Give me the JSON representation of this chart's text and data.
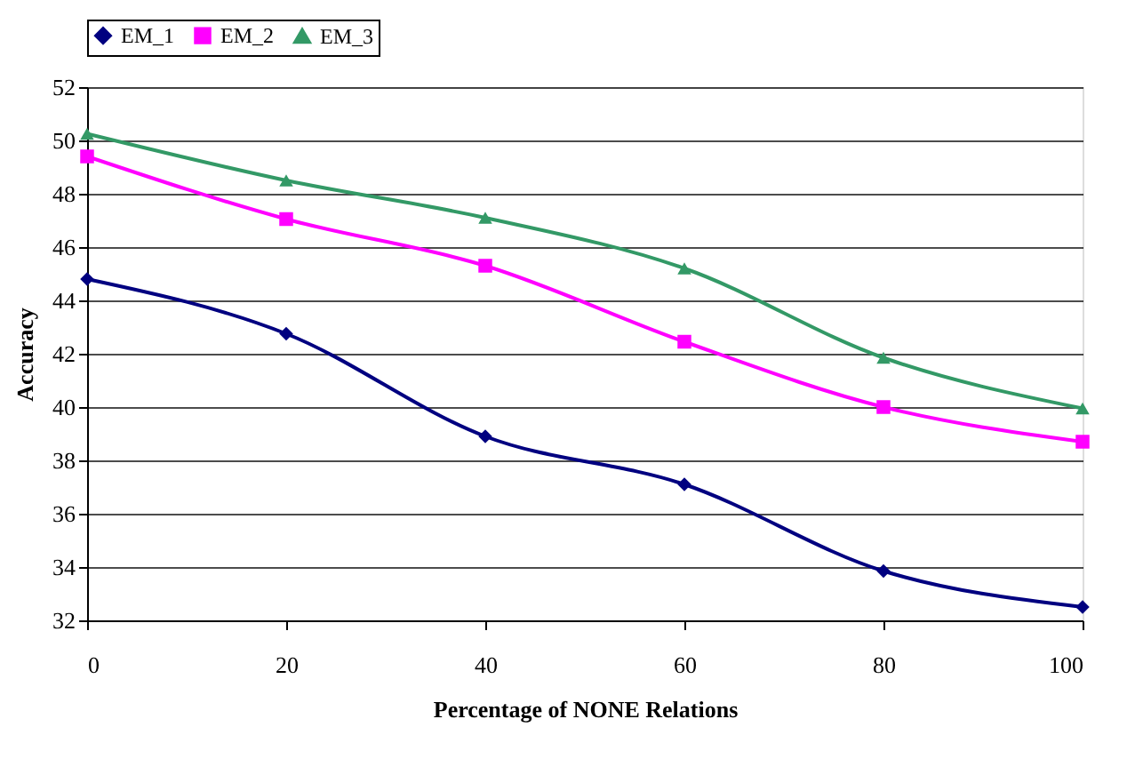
{
  "chart_data": {
    "type": "line",
    "xlabel": "Percentage of NONE Relations",
    "ylabel": "Accuracy",
    "x": [
      0,
      20,
      40,
      60,
      80,
      100
    ],
    "series": [
      {
        "name": "EM_1",
        "color": "#000080",
        "marker": "diamond",
        "values": [
          44.8,
          42.75,
          38.9,
          37.1,
          33.85,
          32.5
        ]
      },
      {
        "name": "EM_2",
        "color": "#ff00ff",
        "marker": "square",
        "values": [
          49.4,
          47.05,
          45.3,
          42.45,
          40.0,
          38.7
        ]
      },
      {
        "name": "EM_3",
        "color": "#339966",
        "marker": "triangle",
        "values": [
          50.25,
          48.5,
          47.1,
          45.2,
          41.85,
          39.95
        ]
      }
    ],
    "xlim": [
      0,
      100
    ],
    "xticks": [
      0,
      20,
      40,
      60,
      80,
      100
    ],
    "ylim": [
      32,
      52
    ],
    "yticks": [
      32,
      34,
      36,
      38,
      40,
      42,
      44,
      46,
      48,
      50,
      52
    ],
    "grid": "y",
    "legend": "top",
    "line_style": "solid"
  }
}
